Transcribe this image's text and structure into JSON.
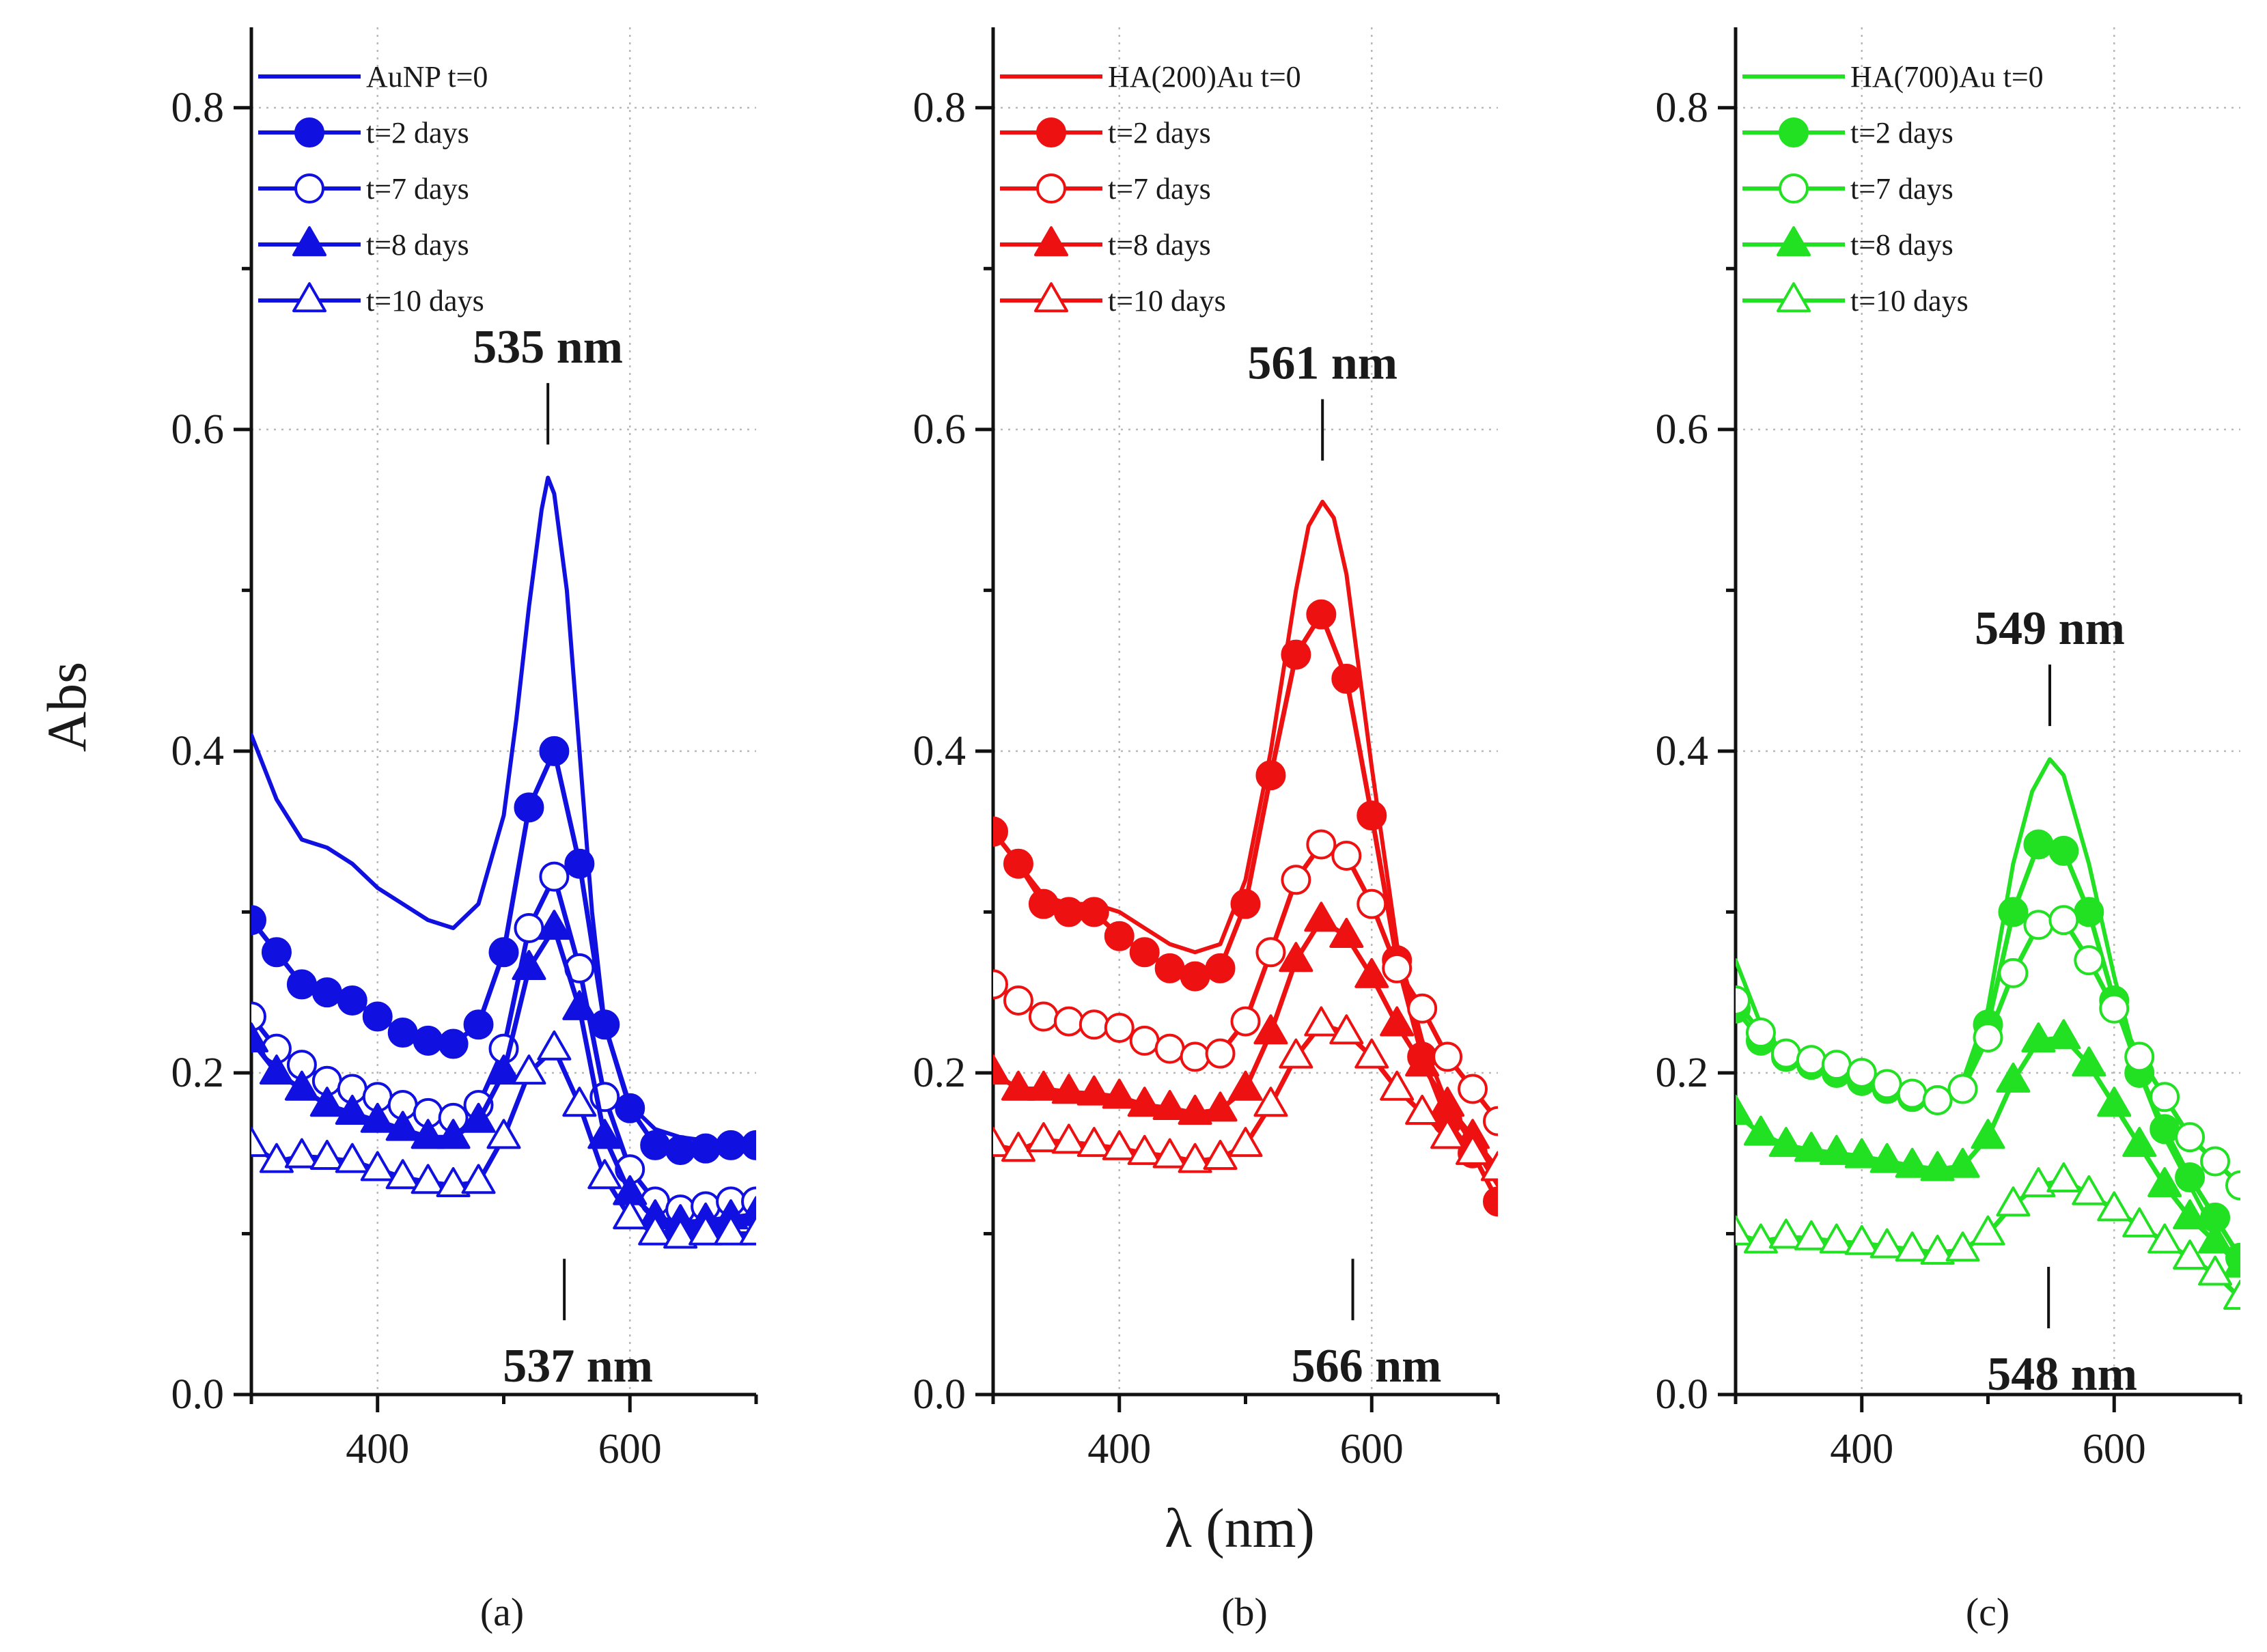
{
  "figure": {
    "y_title": "Abs",
    "x_title": "λ (nm)"
  },
  "chart_data": [
    {
      "type": "line",
      "panel_label": "(a)",
      "color": "#1010e0",
      "xlabel": "λ (nm)",
      "ylabel": "Abs",
      "xlim": [
        300,
        700
      ],
      "ylim": [
        0,
        0.85
      ],
      "x_ticks": [
        400,
        600
      ],
      "x_tick_labels": [
        "400",
        "600"
      ],
      "y_ticks": [
        0,
        0.2,
        0.4,
        0.6,
        0.8
      ],
      "y_tick_labels": [
        "0.0",
        "0.2",
        "0.4",
        "0.6",
        "0.8"
      ],
      "grid": true,
      "legend_position": "top-left",
      "annotations": [
        {
          "text": "535 nm",
          "x": 535,
          "y_anchor": 0.58,
          "placement": "above"
        },
        {
          "text": "537 nm",
          "x": 548,
          "y_anchor": 0.095,
          "placement": "below"
        }
      ],
      "series": [
        {
          "name": "AuNP t=0",
          "marker": "none",
          "x": [
            300,
            320,
            340,
            360,
            380,
            400,
            420,
            440,
            460,
            480,
            500,
            510,
            520,
            530,
            535,
            540,
            550,
            560,
            570,
            580,
            600,
            620,
            640,
            660,
            680,
            700
          ],
          "y": [
            0.41,
            0.37,
            0.345,
            0.34,
            0.33,
            0.315,
            0.305,
            0.295,
            0.29,
            0.305,
            0.36,
            0.42,
            0.49,
            0.55,
            0.57,
            0.56,
            0.5,
            0.4,
            0.3,
            0.23,
            0.18,
            0.165,
            0.16,
            0.158,
            0.157,
            0.155
          ]
        },
        {
          "name": "t=2 days",
          "marker": "circle-filled",
          "x": [
            300,
            320,
            340,
            360,
            380,
            400,
            420,
            440,
            460,
            480,
            500,
            520,
            540,
            560,
            580,
            600,
            620,
            640,
            660,
            680,
            700
          ],
          "y": [
            0.295,
            0.275,
            0.255,
            0.25,
            0.245,
            0.235,
            0.225,
            0.22,
            0.218,
            0.23,
            0.275,
            0.365,
            0.4,
            0.33,
            0.23,
            0.178,
            0.155,
            0.152,
            0.153,
            0.155,
            0.155
          ]
        },
        {
          "name": "t=7 days",
          "marker": "circle-open",
          "x": [
            300,
            320,
            340,
            360,
            380,
            400,
            420,
            440,
            460,
            480,
            500,
            520,
            540,
            560,
            580,
            600,
            620,
            640,
            660,
            680,
            700
          ],
          "y": [
            0.235,
            0.215,
            0.205,
            0.195,
            0.19,
            0.185,
            0.18,
            0.175,
            0.172,
            0.18,
            0.215,
            0.29,
            0.322,
            0.265,
            0.185,
            0.14,
            0.12,
            0.115,
            0.117,
            0.12,
            0.12
          ]
        },
        {
          "name": "t=8 days",
          "marker": "triangle-filled",
          "x": [
            300,
            320,
            340,
            360,
            380,
            400,
            420,
            440,
            460,
            480,
            500,
            520,
            540,
            560,
            580,
            600,
            620,
            640,
            660,
            680,
            700
          ],
          "y": [
            0.22,
            0.2,
            0.19,
            0.18,
            0.175,
            0.17,
            0.165,
            0.16,
            0.16,
            0.17,
            0.2,
            0.265,
            0.29,
            0.24,
            0.16,
            0.125,
            0.11,
            0.107,
            0.108,
            0.11,
            0.112
          ]
        },
        {
          "name": "t=10 days",
          "marker": "triangle-open",
          "x": [
            300,
            320,
            340,
            360,
            380,
            400,
            420,
            440,
            460,
            480,
            500,
            520,
            540,
            560,
            580,
            600,
            620,
            640,
            660,
            680,
            700
          ],
          "y": [
            0.155,
            0.145,
            0.148,
            0.147,
            0.145,
            0.14,
            0.135,
            0.132,
            0.13,
            0.132,
            0.16,
            0.2,
            0.215,
            0.18,
            0.135,
            0.11,
            0.1,
            0.098,
            0.1,
            0.1,
            0.1
          ]
        }
      ]
    },
    {
      "type": "line",
      "panel_label": "(b)",
      "color": "#ee1111",
      "xlabel": "λ (nm)",
      "ylabel": "Abs",
      "xlim": [
        300,
        700
      ],
      "ylim": [
        0,
        0.85
      ],
      "x_ticks": [
        400,
        600
      ],
      "x_tick_labels": [
        "400",
        "600"
      ],
      "y_ticks": [
        0,
        0.2,
        0.4,
        0.6,
        0.8
      ],
      "y_tick_labels": [
        "0.0",
        "0.2",
        "0.4",
        "0.6",
        "0.8"
      ],
      "grid": true,
      "legend_position": "top-left",
      "annotations": [
        {
          "text": "561 nm",
          "x": 561,
          "y_anchor": 0.57,
          "placement": "above"
        },
        {
          "text": "566 nm",
          "x": 585,
          "y_anchor": 0.095,
          "placement": "below"
        }
      ],
      "series": [
        {
          "name": "HA(200)Au t=0",
          "marker": "none",
          "x": [
            300,
            320,
            340,
            360,
            380,
            400,
            420,
            440,
            460,
            480,
            500,
            520,
            540,
            550,
            561,
            570,
            580,
            600,
            620,
            640,
            660,
            680,
            700
          ],
          "y": [
            0.35,
            0.33,
            0.31,
            0.305,
            0.305,
            0.3,
            0.29,
            0.28,
            0.275,
            0.28,
            0.32,
            0.4,
            0.5,
            0.54,
            0.555,
            0.545,
            0.51,
            0.39,
            0.28,
            0.22,
            0.18,
            0.155,
            0.13
          ]
        },
        {
          "name": "t=2 days",
          "marker": "circle-filled",
          "x": [
            300,
            320,
            340,
            360,
            380,
            400,
            420,
            440,
            460,
            480,
            500,
            520,
            540,
            560,
            580,
            600,
            620,
            640,
            660,
            680,
            700
          ],
          "y": [
            0.35,
            0.33,
            0.305,
            0.3,
            0.3,
            0.285,
            0.275,
            0.265,
            0.26,
            0.265,
            0.305,
            0.385,
            0.46,
            0.485,
            0.445,
            0.36,
            0.27,
            0.21,
            0.17,
            0.15,
            0.12
          ]
        },
        {
          "name": "t=7 days",
          "marker": "circle-open",
          "x": [
            300,
            320,
            340,
            360,
            380,
            400,
            420,
            440,
            460,
            480,
            500,
            520,
            540,
            560,
            580,
            600,
            620,
            640,
            660,
            680,
            700
          ],
          "y": [
            0.255,
            0.245,
            0.235,
            0.232,
            0.23,
            0.228,
            0.22,
            0.215,
            0.21,
            0.212,
            0.232,
            0.275,
            0.32,
            0.342,
            0.335,
            0.305,
            0.265,
            0.24,
            0.21,
            0.19,
            0.17
          ]
        },
        {
          "name": "t=8 days",
          "marker": "triangle-filled",
          "x": [
            300,
            320,
            340,
            360,
            380,
            400,
            420,
            440,
            460,
            480,
            500,
            520,
            540,
            560,
            580,
            600,
            620,
            640,
            660,
            680,
            700
          ],
          "y": [
            0.2,
            0.19,
            0.19,
            0.188,
            0.187,
            0.185,
            0.18,
            0.178,
            0.175,
            0.177,
            0.19,
            0.225,
            0.27,
            0.295,
            0.285,
            0.26,
            0.23,
            0.205,
            0.18,
            0.16,
            0.14
          ]
        },
        {
          "name": "t=10 days",
          "marker": "triangle-open",
          "x": [
            300,
            320,
            340,
            360,
            380,
            400,
            420,
            440,
            460,
            480,
            500,
            520,
            540,
            560,
            580,
            600,
            620,
            640,
            660,
            680,
            700
          ],
          "y": [
            0.155,
            0.152,
            0.158,
            0.157,
            0.155,
            0.153,
            0.15,
            0.148,
            0.145,
            0.147,
            0.155,
            0.18,
            0.21,
            0.23,
            0.225,
            0.21,
            0.19,
            0.175,
            0.16,
            0.15,
            0.14
          ]
        }
      ]
    },
    {
      "type": "line",
      "panel_label": "(c)",
      "color": "#22e022",
      "xlabel": "λ (nm)",
      "ylabel": "Abs",
      "xlim": [
        300,
        700
      ],
      "ylim": [
        0,
        0.85
      ],
      "x_ticks": [
        400,
        600
      ],
      "x_tick_labels": [
        "400",
        "600"
      ],
      "y_ticks": [
        0,
        0.2,
        0.4,
        0.6,
        0.8
      ],
      "y_tick_labels": [
        "0.0",
        "0.2",
        "0.4",
        "0.6",
        "0.8"
      ],
      "grid": true,
      "legend_position": "top-left",
      "annotations": [
        {
          "text": "549 nm",
          "x": 549,
          "y_anchor": 0.405,
          "placement": "above"
        },
        {
          "text": "548 nm",
          "x": 548,
          "y_anchor": 0.09,
          "placement": "below"
        }
      ],
      "series": [
        {
          "name": "HA(700)Au t=0",
          "marker": "none",
          "x": [
            300,
            320,
            340,
            360,
            380,
            400,
            420,
            440,
            460,
            480,
            500,
            520,
            535,
            549,
            560,
            580,
            600,
            620,
            640,
            660,
            680,
            700
          ],
          "y": [
            0.27,
            0.23,
            0.21,
            0.205,
            0.2,
            0.195,
            0.19,
            0.185,
            0.183,
            0.195,
            0.24,
            0.33,
            0.375,
            0.395,
            0.385,
            0.33,
            0.26,
            0.2,
            0.16,
            0.13,
            0.1,
            0.075
          ]
        },
        {
          "name": "t=2 days",
          "marker": "circle-filled",
          "x": [
            300,
            320,
            340,
            360,
            380,
            400,
            420,
            440,
            460,
            480,
            500,
            520,
            540,
            560,
            580,
            600,
            620,
            640,
            660,
            680,
            700
          ],
          "y": [
            0.24,
            0.22,
            0.21,
            0.205,
            0.2,
            0.195,
            0.19,
            0.185,
            0.183,
            0.19,
            0.23,
            0.3,
            0.342,
            0.338,
            0.3,
            0.245,
            0.2,
            0.165,
            0.135,
            0.11,
            0.085
          ]
        },
        {
          "name": "t=7 days",
          "marker": "circle-open",
          "x": [
            300,
            320,
            340,
            360,
            380,
            400,
            420,
            440,
            460,
            480,
            500,
            520,
            540,
            560,
            580,
            600,
            620,
            640,
            660,
            680,
            700
          ],
          "y": [
            0.245,
            0.225,
            0.212,
            0.208,
            0.205,
            0.2,
            0.193,
            0.187,
            0.183,
            0.19,
            0.222,
            0.262,
            0.292,
            0.295,
            0.27,
            0.24,
            0.21,
            0.185,
            0.16,
            0.145,
            0.13
          ]
        },
        {
          "name": "t=8 days",
          "marker": "triangle-filled",
          "x": [
            300,
            320,
            340,
            360,
            380,
            400,
            420,
            440,
            460,
            480,
            500,
            520,
            540,
            560,
            580,
            600,
            620,
            640,
            660,
            680,
            700
          ],
          "y": [
            0.175,
            0.162,
            0.155,
            0.152,
            0.15,
            0.148,
            0.145,
            0.142,
            0.14,
            0.142,
            0.16,
            0.195,
            0.22,
            0.222,
            0.205,
            0.18,
            0.155,
            0.13,
            0.11,
            0.095,
            0.08
          ]
        },
        {
          "name": "t=10 days",
          "marker": "triangle-open",
          "x": [
            300,
            320,
            340,
            360,
            380,
            400,
            420,
            440,
            460,
            480,
            500,
            520,
            540,
            560,
            580,
            600,
            620,
            640,
            660,
            680,
            700
          ],
          "y": [
            0.1,
            0.095,
            0.098,
            0.097,
            0.095,
            0.094,
            0.092,
            0.09,
            0.088,
            0.09,
            0.1,
            0.118,
            0.13,
            0.133,
            0.125,
            0.115,
            0.105,
            0.095,
            0.085,
            0.075,
            0.06
          ]
        }
      ]
    }
  ]
}
